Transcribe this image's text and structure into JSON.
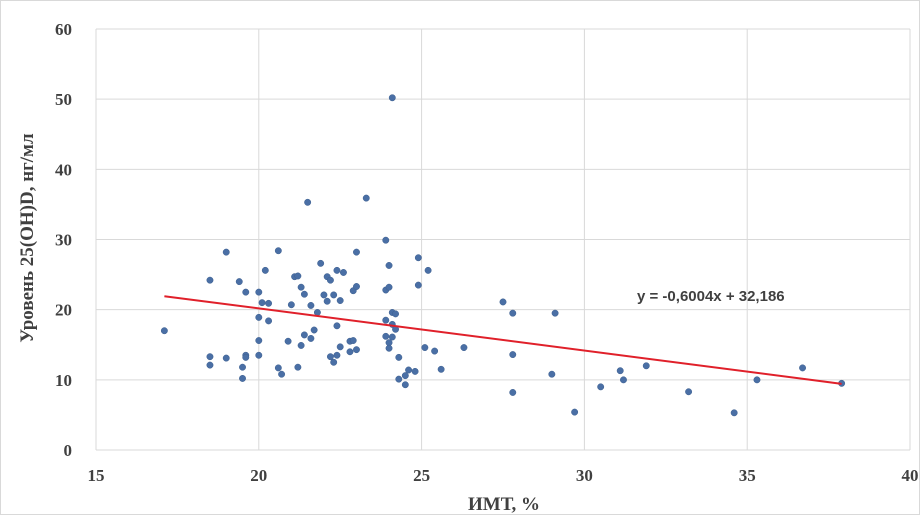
{
  "chart_data": {
    "type": "scatter",
    "xlabel": "ИМТ, %",
    "ylabel": "Уровень 25(OH)D, нг/мл",
    "xlim": [
      15,
      40
    ],
    "ylim": [
      0,
      60
    ],
    "xticks": [
      "15",
      "20",
      "25",
      "30",
      "35",
      "40"
    ],
    "yticks": [
      "0",
      "10",
      "20",
      "30",
      "40",
      "50",
      "60"
    ],
    "grid": "vertical and horizontal major gridlines",
    "legend": "none",
    "series": [
      {
        "marker_color": "#4a6fa5",
        "points": [
          [
            17.1,
            17.0
          ],
          [
            18.5,
            24.2
          ],
          [
            18.5,
            13.3
          ],
          [
            18.5,
            12.1
          ],
          [
            19.0,
            28.2
          ],
          [
            19.0,
            13.1
          ],
          [
            19.4,
            24.0
          ],
          [
            19.5,
            11.8
          ],
          [
            19.5,
            10.2
          ],
          [
            19.6,
            22.5
          ],
          [
            19.6,
            13.5
          ],
          [
            19.6,
            13.2
          ],
          [
            20.0,
            22.5
          ],
          [
            20.0,
            18.9
          ],
          [
            20.0,
            15.6
          ],
          [
            20.0,
            13.5
          ],
          [
            20.1,
            21.0
          ],
          [
            20.2,
            25.6
          ],
          [
            20.3,
            20.9
          ],
          [
            20.3,
            18.4
          ],
          [
            20.6,
            28.4
          ],
          [
            20.6,
            11.7
          ],
          [
            20.7,
            10.8
          ],
          [
            20.9,
            15.5
          ],
          [
            21.0,
            20.7
          ],
          [
            21.1,
            24.7
          ],
          [
            21.2,
            24.8
          ],
          [
            21.2,
            11.8
          ],
          [
            21.3,
            23.2
          ],
          [
            21.3,
            14.9
          ],
          [
            21.4,
            22.2
          ],
          [
            21.4,
            16.4
          ],
          [
            21.5,
            35.3
          ],
          [
            21.6,
            15.9
          ],
          [
            21.6,
            20.6
          ],
          [
            21.7,
            17.1
          ],
          [
            21.8,
            19.6
          ],
          [
            21.9,
            26.6
          ],
          [
            22.0,
            22.1
          ],
          [
            22.1,
            24.7
          ],
          [
            22.1,
            21.2
          ],
          [
            22.2,
            24.2
          ],
          [
            22.2,
            13.3
          ],
          [
            22.3,
            12.5
          ],
          [
            22.3,
            22.1
          ],
          [
            22.4,
            25.6
          ],
          [
            22.4,
            17.7
          ],
          [
            22.4,
            13.5
          ],
          [
            22.5,
            14.7
          ],
          [
            22.5,
            21.3
          ],
          [
            22.6,
            25.3
          ],
          [
            22.8,
            15.5
          ],
          [
            22.8,
            14.0
          ],
          [
            22.9,
            22.7
          ],
          [
            22.9,
            15.6
          ],
          [
            23.0,
            28.2
          ],
          [
            23.0,
            23.3
          ],
          [
            23.0,
            14.3
          ],
          [
            23.3,
            35.9
          ],
          [
            23.9,
            29.9
          ],
          [
            23.9,
            18.5
          ],
          [
            23.9,
            16.2
          ],
          [
            23.9,
            22.8
          ],
          [
            24.0,
            26.3
          ],
          [
            24.0,
            23.2
          ],
          [
            24.0,
            15.3
          ],
          [
            24.0,
            14.5
          ],
          [
            24.1,
            50.2
          ],
          [
            24.1,
            19.6
          ],
          [
            24.1,
            17.9
          ],
          [
            24.1,
            16.1
          ],
          [
            24.2,
            19.4
          ],
          [
            24.2,
            17.2
          ],
          [
            24.3,
            13.2
          ],
          [
            24.3,
            10.1
          ],
          [
            24.5,
            9.3
          ],
          [
            24.5,
            10.6
          ],
          [
            24.6,
            11.4
          ],
          [
            24.8,
            11.2
          ],
          [
            24.9,
            27.4
          ],
          [
            24.9,
            23.5
          ],
          [
            25.1,
            14.6
          ],
          [
            25.2,
            25.6
          ],
          [
            25.4,
            14.1
          ],
          [
            25.6,
            11.5
          ],
          [
            26.3,
            14.6
          ],
          [
            27.5,
            21.1
          ],
          [
            27.8,
            19.5
          ],
          [
            27.8,
            13.6
          ],
          [
            27.8,
            8.2
          ],
          [
            29.0,
            10.8
          ],
          [
            29.1,
            19.5
          ],
          [
            29.7,
            5.4
          ],
          [
            30.5,
            9.0
          ],
          [
            31.1,
            11.3
          ],
          [
            31.2,
            10.0
          ],
          [
            31.9,
            12.0
          ],
          [
            33.2,
            8.3
          ],
          [
            34.6,
            5.3
          ],
          [
            35.3,
            10.0
          ],
          [
            36.7,
            11.7
          ],
          [
            37.9,
            9.5
          ]
        ]
      }
    ],
    "trendline": {
      "color": "#e0202a",
      "slope": -0.6004,
      "intercept": 32.186,
      "x_from": 17.1,
      "x_to": 37.9,
      "equation_label": "y = -0,6004x + 32,186"
    }
  }
}
